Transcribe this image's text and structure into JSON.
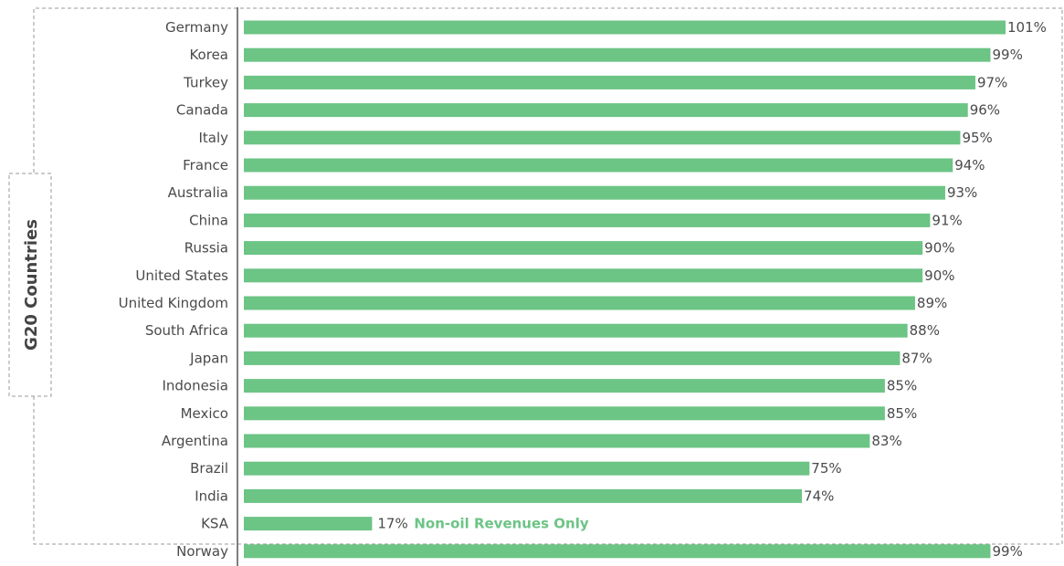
{
  "chart_data": {
    "type": "bar",
    "orientation": "horizontal",
    "categories": [
      "Germany",
      "Korea",
      "Turkey",
      "Canada",
      "Italy",
      "France",
      "Australia",
      "China",
      "Russia",
      "United States",
      "United Kingdom",
      "South Africa",
      "Japan",
      "Indonesia",
      "Mexico",
      "Argentina",
      "Brazil",
      "India",
      "KSA",
      "Norway"
    ],
    "values": [
      101,
      99,
      97,
      96,
      95,
      94,
      93,
      91,
      90,
      90,
      89,
      88,
      87,
      85,
      85,
      83,
      75,
      74,
      17,
      99
    ],
    "value_labels": [
      "101%",
      "99%",
      "97%",
      "96%",
      "95%",
      "94%",
      "93%",
      "91%",
      "90%",
      "90%",
      "89%",
      "88%",
      "87%",
      "85%",
      "85%",
      "83%",
      "75%",
      "74%",
      "17%",
      "99%"
    ],
    "xlim": [
      0,
      101
    ],
    "grid": false,
    "highlight_category": "KSA",
    "highlight_note": "Non-oil Revenues Only",
    "group_label": "G20 Countries",
    "group_members": [
      "Germany",
      "Korea",
      "Turkey",
      "Canada",
      "Italy",
      "France",
      "Australia",
      "China",
      "Russia",
      "United States",
      "United Kingdom",
      "South Africa",
      "Japan",
      "Indonesia",
      "Mexico",
      "Argentina",
      "Brazil",
      "India",
      "KSA"
    ],
    "colors": {
      "bar": "#6cc485",
      "highlight_text": "#6cc485",
      "text": "#4a4a4a",
      "axis": "#555555",
      "dashed_box": "#999999"
    }
  }
}
